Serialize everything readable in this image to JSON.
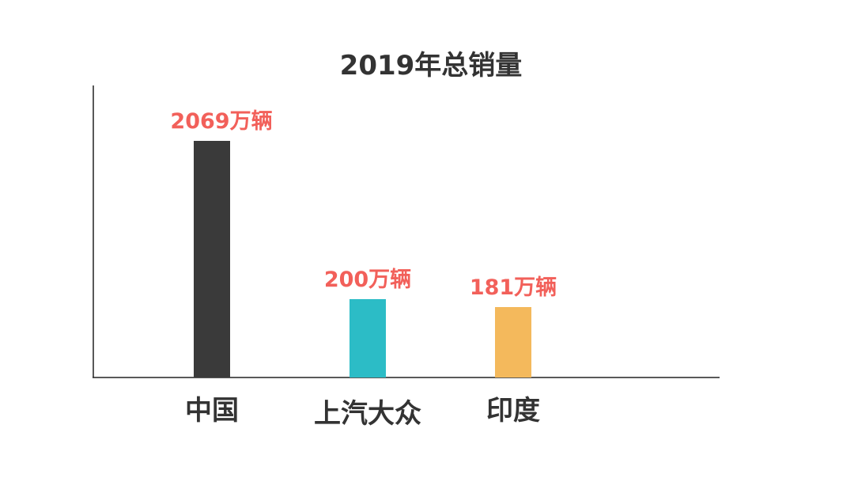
{
  "chart_data": {
    "type": "bar",
    "title": "2019年总销量",
    "categories": [
      "中国",
      "上汽大众",
      "印度"
    ],
    "values": [
      2069,
      200,
      181
    ],
    "value_labels": [
      "2069万辆",
      "200万辆",
      "181万辆"
    ],
    "colors": [
      "#3a3a3a",
      "#2cbcc6",
      "#f4b95c"
    ],
    "label_color": "#f2605a",
    "xlabel": "",
    "ylabel": "",
    "grid": false,
    "legend": "none"
  }
}
